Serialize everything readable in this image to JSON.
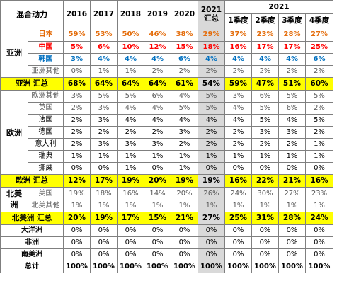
{
  "colors": {
    "japan": "#e46c0a",
    "china": "#ff0000",
    "korea": "#0070c0",
    "summary_highlight": "#ffff00",
    "column_2021_shade": "#d9d9d9",
    "gridline": "#7f7f7f"
  },
  "chart_data": {
    "type": "table",
    "header": {
      "title": "混合动力",
      "years": [
        "2016",
        "2017",
        "2018",
        "2019",
        "2020"
      ],
      "y2021_total_year": "2021",
      "y2021_total_sub": "汇总",
      "y2021_group": "2021",
      "quarters": [
        "1季度",
        "2季度",
        "3季度",
        "4季度"
      ]
    },
    "regions": {
      "asia": "亚洲",
      "europe": "欧洲",
      "na_line1": "北美",
      "na_line2": "洲"
    },
    "rows": [
      {
        "label": "日本",
        "values": [
          "59%",
          "53%",
          "50%",
          "46%",
          "38%",
          "29%",
          "37%",
          "23%",
          "28%",
          "27%"
        ]
      },
      {
        "label": "中国",
        "values": [
          "5%",
          "6%",
          "10%",
          "12%",
          "15%",
          "18%",
          "16%",
          "17%",
          "17%",
          "25%"
        ]
      },
      {
        "label": "韩国",
        "values": [
          "3%",
          "4%",
          "4%",
          "4%",
          "6%",
          "4%",
          "4%",
          "4%",
          "4%",
          "6%"
        ]
      },
      {
        "label": "亚洲其他",
        "values": [
          "0%",
          "1%",
          "1%",
          "2%",
          "2%",
          "2%",
          "2%",
          "2%",
          "2%",
          "2%"
        ]
      },
      {
        "label": "亚洲 汇总",
        "values": [
          "68%",
          "64%",
          "64%",
          "64%",
          "61%",
          "54%",
          "59%",
          "47%",
          "51%",
          "60%"
        ]
      },
      {
        "label": "欧洲其他",
        "values": [
          "3%",
          "5%",
          "5%",
          "6%",
          "4%",
          "5%",
          "3%",
          "6%",
          "5%",
          "5%"
        ]
      },
      {
        "label": "英国",
        "values": [
          "2%",
          "3%",
          "4%",
          "4%",
          "5%",
          "5%",
          "4%",
          "5%",
          "6%",
          "2%"
        ]
      },
      {
        "label": "法国",
        "values": [
          "2%",
          "3%",
          "4%",
          "4%",
          "4%",
          "4%",
          "4%",
          "5%",
          "4%",
          "5%"
        ]
      },
      {
        "label": "德国",
        "values": [
          "2%",
          "2%",
          "2%",
          "2%",
          "3%",
          "2%",
          "2%",
          "3%",
          "3%",
          "2%"
        ]
      },
      {
        "label": "意大利",
        "values": [
          "2%",
          "3%",
          "3%",
          "3%",
          "2%",
          "2%",
          "2%",
          "2%",
          "2%",
          "1%"
        ]
      },
      {
        "label": "瑞典",
        "values": [
          "1%",
          "1%",
          "1%",
          "1%",
          "1%",
          "1%",
          "1%",
          "1%",
          "1%",
          "1%"
        ]
      },
      {
        "label": "挪威",
        "values": [
          "0%",
          "0%",
          "1%",
          "0%",
          "1%",
          "0%",
          "0%",
          "0%",
          "0%",
          "0%"
        ]
      },
      {
        "label": "欧洲 汇总",
        "values": [
          "12%",
          "17%",
          "19%",
          "20%",
          "19%",
          "19%",
          "16%",
          "22%",
          "21%",
          "16%"
        ]
      },
      {
        "label": "美国",
        "values": [
          "19%",
          "18%",
          "16%",
          "14%",
          "20%",
          "26%",
          "24%",
          "30%",
          "27%",
          "23%"
        ]
      },
      {
        "label": "北美其他",
        "values": [
          "1%",
          "1%",
          "1%",
          "1%",
          "1%",
          "1%",
          "1%",
          "1%",
          "1%",
          "1%"
        ]
      },
      {
        "label": "北美洲 汇总",
        "values": [
          "20%",
          "19%",
          "17%",
          "15%",
          "21%",
          "27%",
          "25%",
          "31%",
          "28%",
          "24%"
        ]
      },
      {
        "label": "大洋洲",
        "values": [
          "0%",
          "0%",
          "0%",
          "0%",
          "0%",
          "0%",
          "0%",
          "0%",
          "0%",
          "0%"
        ]
      },
      {
        "label": "非洲",
        "values": [
          "0%",
          "0%",
          "0%",
          "0%",
          "0%",
          "0%",
          "0%",
          "0%",
          "0%",
          "0%"
        ]
      },
      {
        "label": "南美洲",
        "values": [
          "0%",
          "0%",
          "0%",
          "0%",
          "0%",
          "0%",
          "0%",
          "0%",
          "0%",
          "0%"
        ]
      },
      {
        "label": "总计",
        "values": [
          "100%",
          "100%",
          "100%",
          "100%",
          "100%",
          "100%",
          "100%",
          "100%",
          "100%",
          "100%"
        ]
      }
    ]
  }
}
